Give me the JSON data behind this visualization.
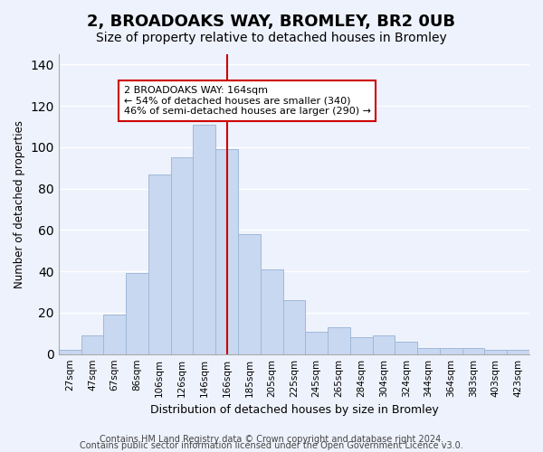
{
  "title": "2, BROADOAKS WAY, BROMLEY, BR2 0UB",
  "subtitle": "Size of property relative to detached houses in Bromley",
  "xlabel": "Distribution of detached houses by size in Bromley",
  "ylabel": "Number of detached properties",
  "bar_color": "#c8d8f0",
  "bar_edge_color": "#a0b8d8",
  "categories": [
    "27sqm",
    "47sqm",
    "67sqm",
    "86sqm",
    "106sqm",
    "126sqm",
    "146sqm",
    "166sqm",
    "185sqm",
    "205sqm",
    "225sqm",
    "245sqm",
    "265sqm",
    "284sqm",
    "304sqm",
    "324sqm",
    "344sqm",
    "364sqm",
    "383sqm",
    "403sqm",
    "423sqm"
  ],
  "values": [
    2,
    9,
    19,
    39,
    87,
    95,
    111,
    99,
    58,
    41,
    26,
    11,
    13,
    8,
    9,
    6,
    3,
    3,
    3,
    2,
    2
  ],
  "vline_x": 7,
  "vline_color": "#cc0000",
  "annotation_title": "2 BROADOAKS WAY: 164sqm",
  "annotation_line1": "← 54% of detached houses are smaller (340)",
  "annotation_line2": "46% of semi-detached houses are larger (290) →",
  "annotation_box_color": "#ffffff",
  "annotation_box_edge": "#cc0000",
  "ylim": [
    0,
    145
  ],
  "footer1": "Contains HM Land Registry data © Crown copyright and database right 2024.",
  "footer2": "Contains public sector information licensed under the Open Government Licence v3.0.",
  "background_color": "#eef2fc",
  "plot_background": "#eef2fc",
  "grid_color": "#ffffff",
  "title_fontsize": 13,
  "subtitle_fontsize": 10,
  "footer_fontsize": 7
}
